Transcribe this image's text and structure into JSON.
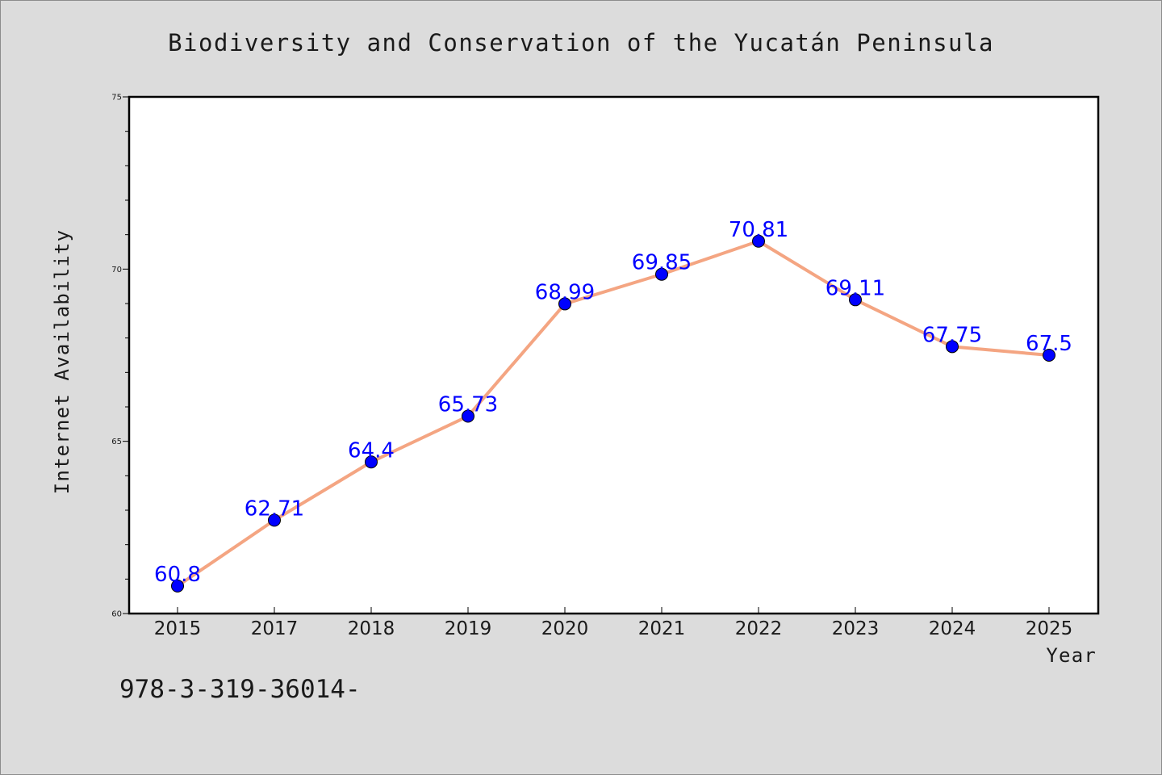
{
  "chart_data": {
    "type": "line",
    "title": "Biodiversity and Conservation of the Yucatán Peninsula",
    "xlabel": "Year",
    "ylabel": "Internet Availability",
    "categories": [
      "2015",
      "2017",
      "2018",
      "2019",
      "2020",
      "2021",
      "2022",
      "2023",
      "2024",
      "2025"
    ],
    "values": [
      60.8,
      62.71,
      64.4,
      65.73,
      68.99,
      69.85,
      70.81,
      69.11,
      67.75,
      67.5
    ],
    "data_labels": [
      "60.8",
      "62.71",
      "64.4",
      "65.73",
      "68.99",
      "69.85",
      "70.81",
      "69.11",
      "67.75",
      "67.5"
    ],
    "ylim": [
      60,
      75
    ],
    "yticks": [
      "60",
      "65",
      "70",
      "75"
    ],
    "grid": false,
    "line_color": "#f4a582",
    "marker_color": "#0000ff",
    "label_color": "#0000ff"
  },
  "footer_text": "978-3-319-36014-"
}
